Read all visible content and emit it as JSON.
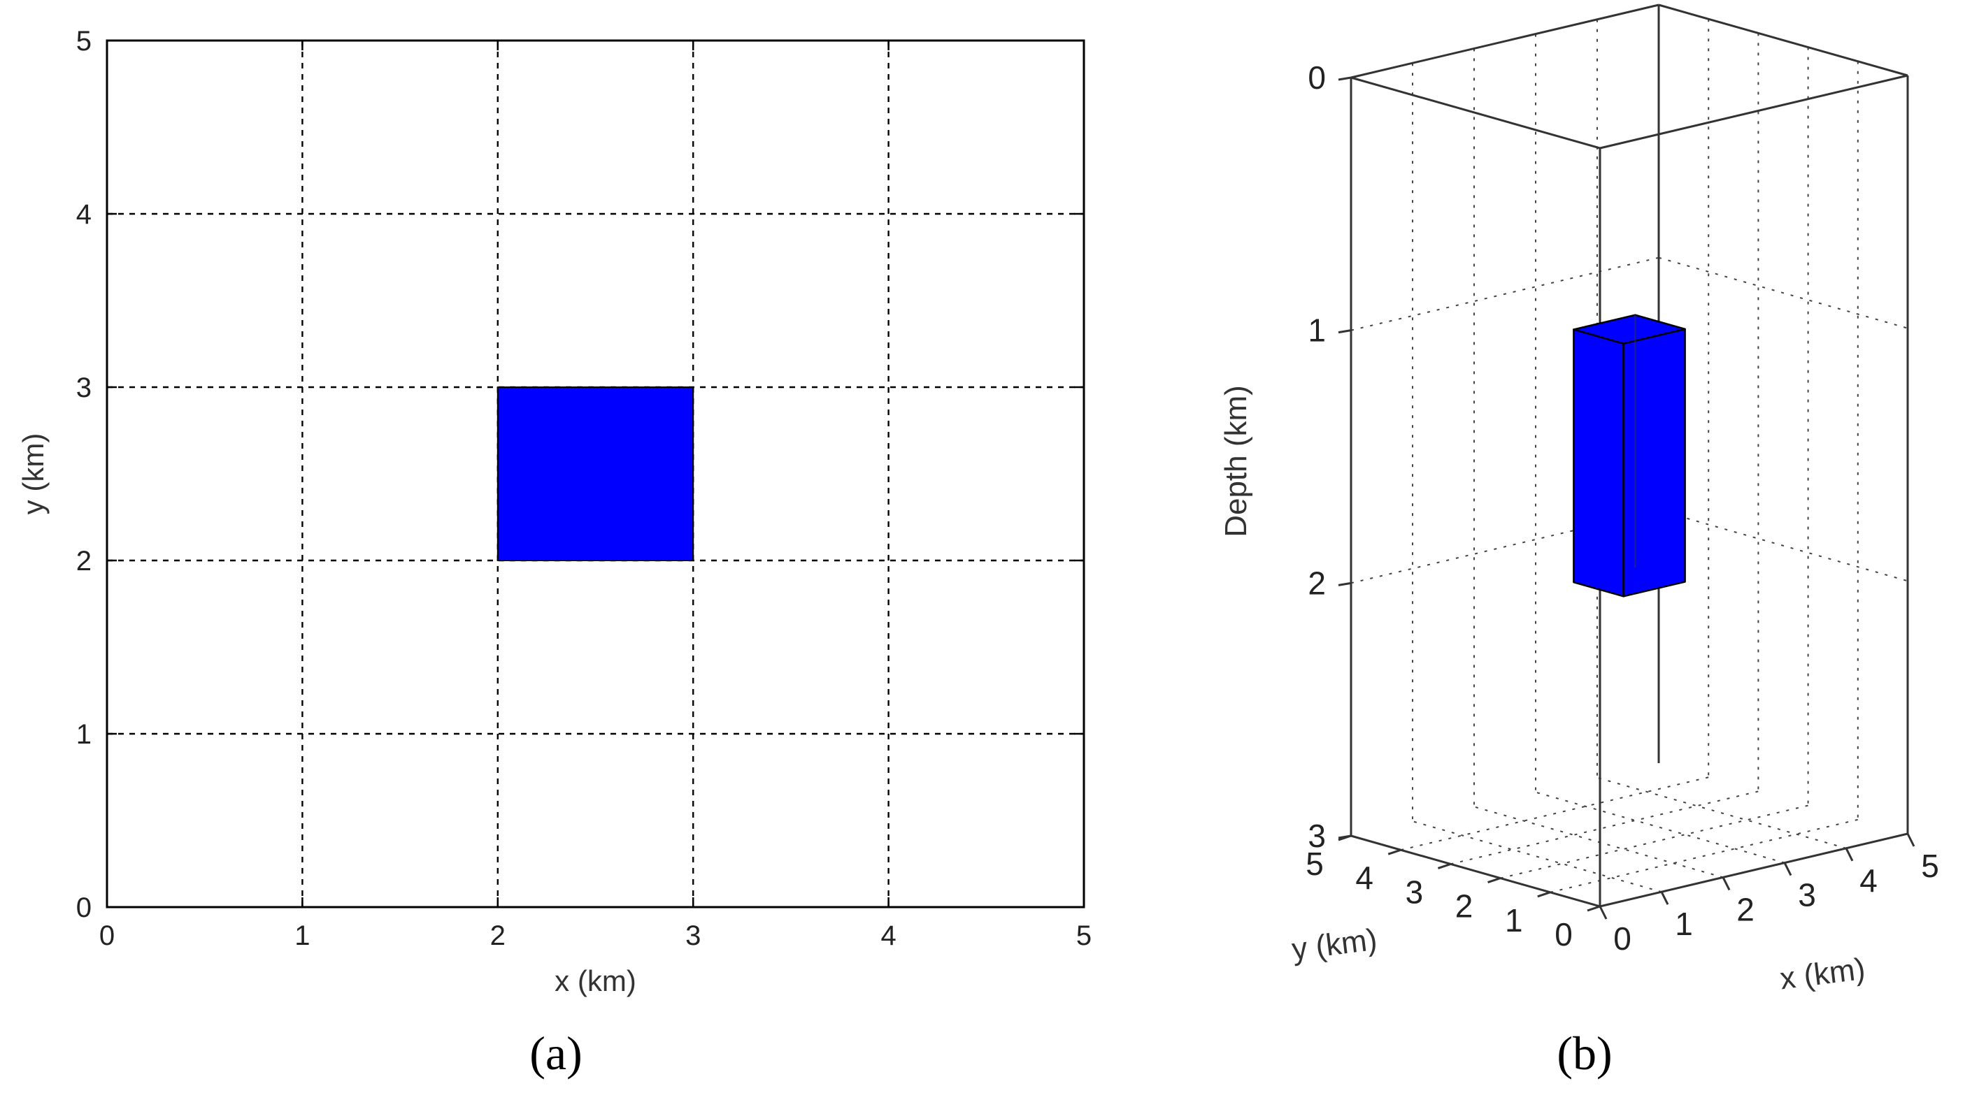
{
  "colors": {
    "body": "#0000ff",
    "line": "#000000",
    "background": "#ffffff"
  },
  "chart_data": [
    {
      "panel": "(a)",
      "type": "rectangle-map",
      "xlabel": "x (km)",
      "ylabel": "y (km)",
      "xlim": [
        0,
        5
      ],
      "ylim": [
        0,
        5
      ],
      "xticks": [
        "0",
        "1",
        "2",
        "3",
        "4",
        "5"
      ],
      "yticks": [
        "0",
        "1",
        "2",
        "3",
        "4",
        "5"
      ],
      "grid": true,
      "rect": {
        "x": [
          2,
          3
        ],
        "y": [
          2,
          3
        ],
        "color": "#0000ff"
      }
    },
    {
      "panel": "(b)",
      "type": "3d-prism",
      "xlabel": "x (km)",
      "ylabel": "y (km)",
      "zlabel": "Depth (km)",
      "xlim": [
        0,
        5
      ],
      "ylim": [
        0,
        5
      ],
      "zlim": [
        0,
        3
      ],
      "xticks": [
        "0",
        "1",
        "2",
        "3",
        "4",
        "5"
      ],
      "yticks": [
        "0",
        "1",
        "2",
        "3",
        "4",
        "5"
      ],
      "zticks": [
        "0",
        "1",
        "2",
        "3"
      ],
      "grid": true,
      "prism": {
        "x": [
          2,
          3
        ],
        "y": [
          2,
          3
        ],
        "depth": [
          1,
          2
        ],
        "color": "#0000ff"
      }
    }
  ]
}
